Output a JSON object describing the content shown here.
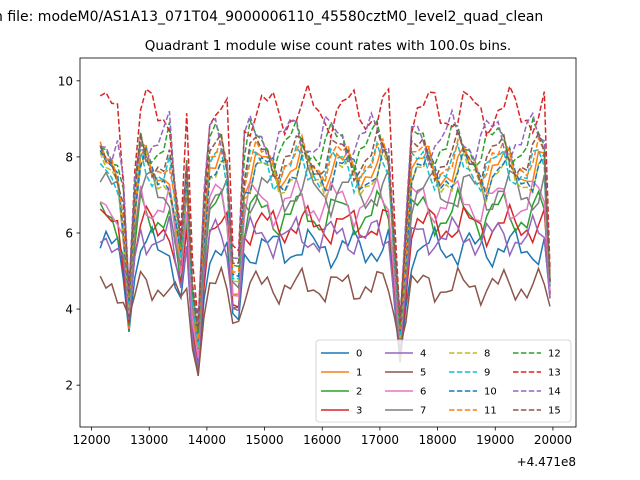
{
  "chart_data": {
    "type": "line",
    "suptitle": "n file: modeM0/AS1A13_071T04_9000006110_45580cztM0_level2_quad_clean",
    "title": "Quadrant 1 module wise count rates with 100.0s bins.",
    "xlabel": "",
    "ylabel": "",
    "x_offset_label": "+4.471e8",
    "xlim": [
      11800,
      20400
    ],
    "ylim": [
      0.9,
      10.6
    ],
    "xticks": [
      12000,
      13000,
      14000,
      15000,
      16000,
      17000,
      18000,
      19000,
      20000
    ],
    "xtick_labels": [
      "12000",
      "13000",
      "14000",
      "15000",
      "16000",
      "17000",
      "18000",
      "19000",
      "20000"
    ],
    "yticks": [
      2,
      4,
      6,
      8,
      10
    ],
    "ytick_labels": [
      "2",
      "4",
      "6",
      "8",
      "10"
    ],
    "x_start": 12150,
    "x_step": 100,
    "dips": [
      {
        "center": 12650,
        "width": 150,
        "level": 3.4
      },
      {
        "center": 13520,
        "width": 120,
        "level": 3.8
      },
      {
        "center": 13820,
        "width": 180,
        "level": 1.5
      },
      {
        "center": 14500,
        "width": 160,
        "level": 2.9
      },
      {
        "center": 17350,
        "width": 200,
        "level": 2.6
      }
    ],
    "legend": {
      "location": "lower right",
      "columns": 4
    },
    "series": [
      {
        "name": "0",
        "color": "#1f77b4",
        "dash": "solid",
        "base": 5.6,
        "amp": 0.35,
        "phase": 0.0
      },
      {
        "name": "1",
        "color": "#ff7f0e",
        "dash": "solid",
        "base": 7.7,
        "amp": 0.45,
        "phase": 1.3
      },
      {
        "name": "2",
        "color": "#2ca02c",
        "dash": "solid",
        "base": 6.5,
        "amp": 0.45,
        "phase": 2.1
      },
      {
        "name": "3",
        "color": "#d62728",
        "dash": "solid",
        "base": 6.2,
        "amp": 0.35,
        "phase": 0.7
      },
      {
        "name": "4",
        "color": "#9467bd",
        "dash": "solid",
        "base": 5.9,
        "amp": 0.35,
        "phase": 3.0
      },
      {
        "name": "5",
        "color": "#8c564b",
        "dash": "solid",
        "base": 4.6,
        "amp": 0.3,
        "phase": 1.9
      },
      {
        "name": "6",
        "color": "#e377c2",
        "dash": "solid",
        "base": 6.8,
        "amp": 0.45,
        "phase": 2.6
      },
      {
        "name": "7",
        "color": "#7f7f7f",
        "dash": "solid",
        "base": 7.1,
        "amp": 0.45,
        "phase": 0.3
      },
      {
        "name": "8",
        "color": "#bcbd22",
        "dash": "dashed",
        "base": 7.5,
        "amp": 0.45,
        "phase": 1.1
      },
      {
        "name": "9",
        "color": "#17becf",
        "dash": "dashed",
        "base": 7.7,
        "amp": 0.45,
        "phase": 2.4
      },
      {
        "name": "10",
        "color": "#1f77b4",
        "dash": "dashed",
        "base": 7.6,
        "amp": 0.45,
        "phase": 0.9
      },
      {
        "name": "11",
        "color": "#ff7f0e",
        "dash": "dashed",
        "base": 7.9,
        "amp": 0.45,
        "phase": 1.7
      },
      {
        "name": "12",
        "color": "#2ca02c",
        "dash": "dashed",
        "base": 8.3,
        "amp": 0.5,
        "phase": 2.8
      },
      {
        "name": "13",
        "color": "#d62728",
        "dash": "dashed",
        "base": 9.2,
        "amp": 0.5,
        "phase": 0.5
      },
      {
        "name": "14",
        "color": "#9467bd",
        "dash": "dashed",
        "base": 8.5,
        "amp": 0.5,
        "phase": 3.4
      },
      {
        "name": "15",
        "color": "#8c564b",
        "dash": "dashed",
        "base": 8.0,
        "amp": 0.5,
        "phase": 2.2
      }
    ]
  }
}
